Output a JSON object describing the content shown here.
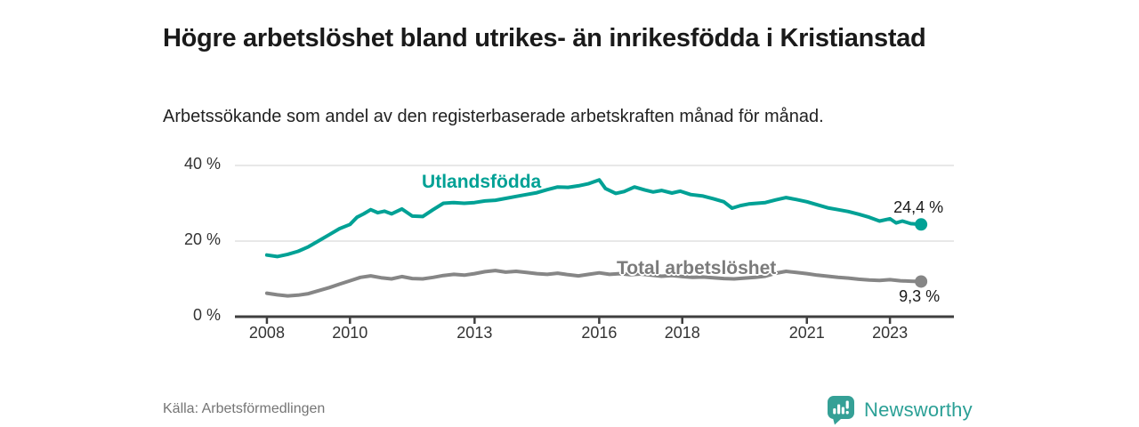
{
  "header": {
    "title": "Högre arbetslöshet bland utrikes- än inrikesfödda i Kristianstad",
    "subtitle": "Arbetssökande som andel av den registerbaserade arbetskraften månad för månad."
  },
  "footer": {
    "source": "Källa: Arbetsförmedlingen",
    "brand_name": "Newsworthy",
    "brand_icon": "newsworthy-speech-bubble-with-bar-chart"
  },
  "colors": {
    "foreign_born_line": "#00a195",
    "total_line": "#868686",
    "total_label_text": "#7b7b7b",
    "axis": "#3f3f3f",
    "grid": "#d9d9d9",
    "tick_text": "#333333",
    "value_label_text": "#1a1a1a",
    "brand_teal": "#35a096",
    "title_text": "#1a1a1a",
    "source_text": "#757575"
  },
  "chart_data": {
    "type": "line",
    "title": "Högre arbetslöshet bland utrikes- än inrikesfödda i Kristianstad",
    "subtitle": "Arbetssökande som andel av den registerbaserade arbetskraften månad för månad.",
    "xlabel": "",
    "ylabel": "",
    "grid": "horizontal",
    "legend_position": "inline-labels",
    "xlim": [
      2007.23,
      2024.54
    ],
    "ylim": [
      0,
      40
    ],
    "x_ticks": [
      2008,
      2010,
      2013,
      2016,
      2018,
      2021,
      2023
    ],
    "x_tick_labels": [
      "2008",
      "2010",
      "2013",
      "2016",
      "2018",
      "2021",
      "2023"
    ],
    "y_ticks": [
      0,
      20,
      40
    ],
    "y_tick_labels": [
      "0 %",
      "20 %",
      "40 %"
    ],
    "series": [
      {
        "name": "Utlandsfödda",
        "color": "#00a195",
        "end_value": 24.4,
        "end_label": "24,4 %",
        "label_anchor": [
          2011.73,
          35.6
        ],
        "points": [
          [
            2008.0,
            16.3
          ],
          [
            2008.25,
            15.9
          ],
          [
            2008.5,
            16.5
          ],
          [
            2008.75,
            17.3
          ],
          [
            2009.0,
            18.5
          ],
          [
            2009.25,
            20.1
          ],
          [
            2009.5,
            21.7
          ],
          [
            2009.75,
            23.3
          ],
          [
            2010.0,
            24.4
          ],
          [
            2010.17,
            26.3
          ],
          [
            2010.33,
            27.2
          ],
          [
            2010.5,
            28.3
          ],
          [
            2010.67,
            27.5
          ],
          [
            2010.83,
            27.9
          ],
          [
            2011.0,
            27.2
          ],
          [
            2011.25,
            28.5
          ],
          [
            2011.5,
            26.6
          ],
          [
            2011.75,
            26.5
          ],
          [
            2012.0,
            28.3
          ],
          [
            2012.25,
            30.0
          ],
          [
            2012.5,
            30.2
          ],
          [
            2012.75,
            30.0
          ],
          [
            2013.0,
            30.2
          ],
          [
            2013.25,
            30.6
          ],
          [
            2013.5,
            30.8
          ],
          [
            2013.75,
            31.3
          ],
          [
            2014.0,
            31.8
          ],
          [
            2014.25,
            32.3
          ],
          [
            2014.5,
            32.8
          ],
          [
            2014.75,
            33.6
          ],
          [
            2015.0,
            34.3
          ],
          [
            2015.25,
            34.2
          ],
          [
            2015.5,
            34.6
          ],
          [
            2015.75,
            35.2
          ],
          [
            2016.0,
            36.2
          ],
          [
            2016.15,
            33.9
          ],
          [
            2016.4,
            32.6
          ],
          [
            2016.6,
            33.1
          ],
          [
            2016.85,
            34.3
          ],
          [
            2017.1,
            33.5
          ],
          [
            2017.3,
            33.0
          ],
          [
            2017.5,
            33.4
          ],
          [
            2017.75,
            32.7
          ],
          [
            2017.95,
            33.2
          ],
          [
            2018.2,
            32.3
          ],
          [
            2018.5,
            31.9
          ],
          [
            2018.75,
            31.2
          ],
          [
            2019.0,
            30.4
          ],
          [
            2019.2,
            28.7
          ],
          [
            2019.4,
            29.4
          ],
          [
            2019.6,
            29.8
          ],
          [
            2019.8,
            30.0
          ],
          [
            2020.0,
            30.2
          ],
          [
            2020.25,
            30.9
          ],
          [
            2020.5,
            31.5
          ],
          [
            2020.75,
            31.0
          ],
          [
            2021.0,
            30.4
          ],
          [
            2021.25,
            29.6
          ],
          [
            2021.5,
            28.8
          ],
          [
            2021.75,
            28.3
          ],
          [
            2022.0,
            27.8
          ],
          [
            2022.25,
            27.1
          ],
          [
            2022.5,
            26.3
          ],
          [
            2022.75,
            25.3
          ],
          [
            2023.0,
            25.9
          ],
          [
            2023.15,
            24.8
          ],
          [
            2023.3,
            25.3
          ],
          [
            2023.5,
            24.6
          ],
          [
            2023.75,
            24.4
          ]
        ]
      },
      {
        "name": "Total arbetslöshet",
        "color": "#868686",
        "end_value": 9.3,
        "end_label": "9,3 %",
        "label_anchor": [
          2016.42,
          12.6
        ],
        "points": [
          [
            2008.0,
            6.2
          ],
          [
            2008.25,
            5.8
          ],
          [
            2008.5,
            5.5
          ],
          [
            2008.75,
            5.7
          ],
          [
            2009.0,
            6.1
          ],
          [
            2009.25,
            6.9
          ],
          [
            2009.5,
            7.7
          ],
          [
            2009.75,
            8.6
          ],
          [
            2010.0,
            9.5
          ],
          [
            2010.25,
            10.4
          ],
          [
            2010.5,
            10.8
          ],
          [
            2010.75,
            10.3
          ],
          [
            2011.0,
            10.0
          ],
          [
            2011.25,
            10.6
          ],
          [
            2011.5,
            10.1
          ],
          [
            2011.75,
            10.0
          ],
          [
            2012.0,
            10.4
          ],
          [
            2012.25,
            10.9
          ],
          [
            2012.5,
            11.2
          ],
          [
            2012.75,
            11.0
          ],
          [
            2013.0,
            11.4
          ],
          [
            2013.25,
            11.9
          ],
          [
            2013.5,
            12.2
          ],
          [
            2013.75,
            11.8
          ],
          [
            2014.0,
            12.0
          ],
          [
            2014.25,
            11.7
          ],
          [
            2014.5,
            11.4
          ],
          [
            2014.75,
            11.2
          ],
          [
            2015.0,
            11.5
          ],
          [
            2015.25,
            11.1
          ],
          [
            2015.5,
            10.8
          ],
          [
            2015.75,
            11.2
          ],
          [
            2016.0,
            11.6
          ],
          [
            2016.25,
            11.2
          ],
          [
            2016.5,
            11.4
          ],
          [
            2016.75,
            11.1
          ],
          [
            2017.0,
            11.3
          ],
          [
            2017.25,
            11.0
          ],
          [
            2017.5,
            10.7
          ],
          [
            2017.75,
            10.9
          ],
          [
            2018.0,
            10.6
          ],
          [
            2018.25,
            10.4
          ],
          [
            2018.5,
            10.5
          ],
          [
            2018.75,
            10.3
          ],
          [
            2019.0,
            10.1
          ],
          [
            2019.25,
            10.0
          ],
          [
            2019.5,
            10.2
          ],
          [
            2019.75,
            10.4
          ],
          [
            2020.0,
            10.7
          ],
          [
            2020.25,
            11.5
          ],
          [
            2020.5,
            12.0
          ],
          [
            2020.75,
            11.7
          ],
          [
            2021.0,
            11.4
          ],
          [
            2021.25,
            11.0
          ],
          [
            2021.5,
            10.7
          ],
          [
            2021.75,
            10.4
          ],
          [
            2022.0,
            10.2
          ],
          [
            2022.25,
            9.9
          ],
          [
            2022.5,
            9.7
          ],
          [
            2022.75,
            9.6
          ],
          [
            2023.0,
            9.8
          ],
          [
            2023.25,
            9.5
          ],
          [
            2023.5,
            9.4
          ],
          [
            2023.75,
            9.3
          ]
        ]
      }
    ]
  }
}
